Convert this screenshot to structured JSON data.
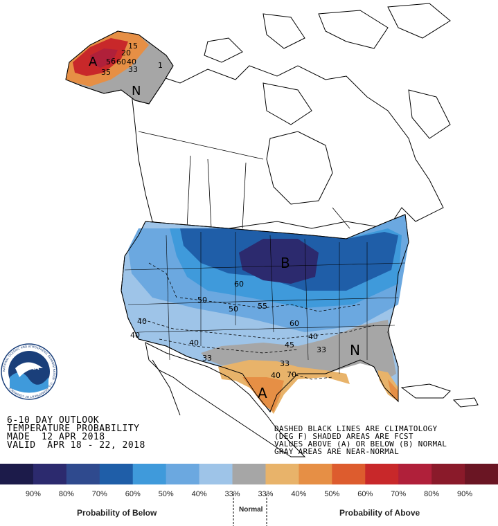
{
  "logo": {
    "text": "NOAA",
    "ring_text": "NATIONAL OCEANIC AND ATMOSPHERIC ADMINISTRATION · U.S. DEPARTMENT OF COMMERCE"
  },
  "stamp_left": {
    "line1": "6-10 DAY OUTLOOK",
    "line2": "TEMPERATURE PROBABILITY",
    "line3": "MADE  12 APR 2018",
    "line4": "VALID  APR 18 - 22, 2018"
  },
  "stamp_right": {
    "line1": "DASHED BLACK LINES ARE CLIMATOLOGY",
    "line2": "(DEG F) SHADED AREAS ARE FCST",
    "line3": "VALUES ABOVE (A) OR BELOW (B) NORMAL",
    "line4": "GRAY AREAS ARE NEAR-NORMAL"
  },
  "map_labels": {
    "alaska_above": "A",
    "alaska_normal": "N",
    "alaska_contours": [
      "15",
      "20",
      "35",
      "6",
      "33",
      "1",
      "60",
      "40",
      "5"
    ],
    "conus_below": "B",
    "southeast_normal": "N",
    "texas_above": "A",
    "contours": [
      "60",
      "50",
      "50",
      "55",
      "40",
      "60",
      "40",
      "40",
      "40",
      "33",
      "45",
      "33",
      "33",
      "40",
      "70"
    ]
  },
  "legend": {
    "below_label": "Probability of Below",
    "normal_label": "Normal",
    "above_label": "Probability of Above",
    "ticks": [
      "90%",
      "80%",
      "70%",
      "60%",
      "50%",
      "40%",
      "33%",
      "33%",
      "40%",
      "50%",
      "60%",
      "70%",
      "80%",
      "90%"
    ],
    "colors": [
      "#1c1b4a",
      "#2c2a6e",
      "#2f4a8e",
      "#1f5ea8",
      "#3f9adb",
      "#6ba8e0",
      "#9ec4e8",
      "#a6a6a6",
      "#e8b36a",
      "#e68f45",
      "#dd5c2e",
      "#c8282a",
      "#b0203a",
      "#8a1a2a",
      "#6a1523"
    ]
  },
  "colors": {
    "below_40": "#9ec4e8",
    "below_50": "#6ba8e0",
    "below_60": "#3f9adb",
    "below_70": "#1f5ea8",
    "below_80": "#2c2a6e",
    "normal": "#a6a6a6",
    "above_40": "#e8b36a",
    "above_50": "#e68f45",
    "above_60": "#dd5c2e",
    "above_70": "#c8282a"
  }
}
